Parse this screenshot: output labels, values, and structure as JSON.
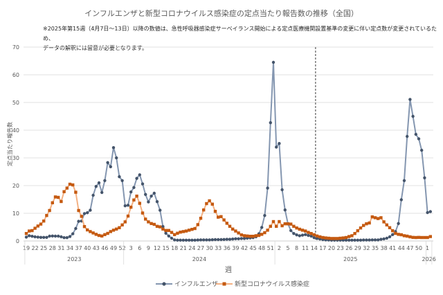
{
  "title": "インフルエンザと新型コロナウイルス感染症の定点当たり報告数の推移（全国）",
  "note_line1": "※2025年第15週（4月7日～13日）以降の数値は、急性呼吸器感染症サーベイランス開始による定点医療機関設置基準の変更に伴い定点数が変更されているため、",
  "note_line2": "データの解釈には留意が必要となります。",
  "chart_data": {
    "type": "line",
    "title": "インフルエンザと新型コロナウイルス感染症の定点当たり報告数の推移（全国）",
    "xlabel": "週",
    "ylabel": "定点当たり報告数",
    "ylim": [
      0,
      70
    ],
    "yticks": [
      0,
      10,
      20,
      30,
      40,
      50,
      60,
      70
    ],
    "grid": "horizontal",
    "legend_position": "bottom",
    "reference_line": {
      "style": "dashed",
      "between": [
        "2025-W14",
        "2025-W15"
      ]
    },
    "years": [
      {
        "year": "2023",
        "weeks": [
          19,
          20,
          21,
          22,
          23,
          24,
          25,
          26,
          27,
          28,
          29,
          30,
          31,
          32,
          33,
          34,
          35,
          36,
          37,
          38,
          39,
          40,
          41,
          42,
          43,
          44,
          45,
          46,
          47,
          48,
          49,
          50,
          51,
          52
        ]
      },
      {
        "year": "2024",
        "weeks": [
          1,
          2,
          3,
          4,
          5,
          6,
          7,
          8,
          9,
          10,
          11,
          12,
          13,
          14,
          15,
          16,
          17,
          18,
          19,
          20,
          21,
          22,
          23,
          24,
          25,
          26,
          27,
          28,
          29,
          30,
          31,
          32,
          33,
          34,
          35,
          36,
          37,
          38,
          39,
          40,
          41,
          42,
          43,
          44,
          45,
          46,
          47,
          48,
          49,
          50,
          51,
          52
        ]
      },
      {
        "year": "2025",
        "weeks": [
          1,
          2,
          3,
          4,
          5,
          6,
          7,
          8,
          9,
          10,
          11,
          12,
          13,
          14,
          15,
          16,
          17,
          18,
          19,
          20,
          21,
          22,
          23,
          24,
          25,
          26,
          27,
          28,
          29,
          30,
          31,
          32,
          33,
          34,
          35,
          36,
          37,
          38,
          39,
          40,
          41,
          42,
          43,
          44,
          45,
          46,
          47,
          48,
          49,
          50,
          51,
          52
        ]
      },
      {
        "year": "2026",
        "weeks": [
          1,
          2
        ]
      }
    ],
    "series": [
      {
        "name": "インフルエンザ",
        "color": "#8496b0",
        "marker_color": "#44546a",
        "marker": "circle",
        "values": [
          1.4,
          1.9,
          1.7,
          1.5,
          1.4,
          1.3,
          1.3,
          1.3,
          1.75,
          1.8,
          1.75,
          1.75,
          1.5,
          1.2,
          1.2,
          1.6,
          2.6,
          4.5,
          7.1,
          7.2,
          9.9,
          10.2,
          11.1,
          16.5,
          19.7,
          21.0,
          17.5,
          21.8,
          28.3,
          26.8,
          33.7,
          30.0,
          23.2,
          21.8,
          12.7,
          12.9,
          17.7,
          19.3,
          22.6,
          23.9,
          20.6,
          16.8,
          14.1,
          16.2,
          17.25,
          14.2,
          11.1,
          5.2,
          2.8,
          1.8,
          1.0,
          0.4,
          0.3,
          0.3,
          0.3,
          0.3,
          0.3,
          0.3,
          0.3,
          0.35,
          0.4,
          0.4,
          0.4,
          0.4,
          0.45,
          0.5,
          0.5,
          0.5,
          0.55,
          0.6,
          0.6,
          0.7,
          0.8,
          0.8,
          0.9,
          0.9,
          1.0,
          1.1,
          1.2,
          1.5,
          2.6,
          4.9,
          9.2,
          19.1,
          42.7,
          64.5,
          33.9,
          35.2,
          18.5,
          11.2,
          6.2,
          3.75,
          2.7,
          2.2,
          1.9,
          2.1,
          2.3,
          2.0,
          1.75,
          1.2,
          0.9,
          0.7,
          0.5,
          0.4,
          0.35,
          0.3,
          0.3,
          0.3,
          0.3,
          0.3,
          0.3,
          0.3,
          0.3,
          0.3,
          0.3,
          0.3,
          0.35,
          0.35,
          0.35,
          0.4,
          0.4,
          0.4,
          0.6,
          0.75,
          1.0,
          1.5,
          2.3,
          3.4,
          6.3,
          14.9,
          21.8,
          37.75,
          51.1,
          45.0,
          38.5,
          36.9,
          32.75,
          22.8,
          10.25,
          10.6
        ]
      },
      {
        "name": "新型コロナウイルス感染症",
        "color": "#f4b183",
        "marker_color": "#c55a11",
        "marker": "square",
        "values": [
          2.7,
          3.6,
          3.75,
          4.6,
          5.4,
          6.1,
          7.2,
          9.2,
          11.0,
          13.8,
          15.9,
          15.75,
          14.25,
          17.8,
          19.1,
          20.5,
          20.25,
          17.6,
          11.0,
          8.9,
          5.2,
          4.0,
          3.4,
          2.9,
          2.4,
          2.0,
          1.8,
          2.3,
          2.75,
          3.4,
          3.9,
          4.3,
          4.8,
          5.8,
          6.9,
          9.0,
          12.2,
          14.8,
          16.2,
          13.6,
          10.1,
          7.9,
          6.9,
          6.3,
          6.0,
          5.3,
          5.1,
          4.3,
          3.8,
          3.8,
          3.1,
          2.3,
          2.8,
          3.2,
          3.4,
          3.6,
          3.9,
          4.2,
          4.5,
          5.9,
          8.2,
          11.2,
          13.5,
          14.5,
          13.3,
          10.7,
          8.6,
          8.8,
          7.6,
          6.4,
          5.3,
          4.3,
          3.6,
          2.9,
          2.2,
          1.9,
          1.8,
          1.7,
          1.7,
          1.9,
          2.0,
          2.4,
          3.0,
          3.9,
          5.3,
          7.0,
          5.3,
          7.0,
          5.5,
          6.2,
          6.2,
          6.1,
          5.3,
          4.7,
          4.25,
          3.9,
          3.6,
          3.1,
          2.7,
          2.25,
          1.8,
          1.5,
          1.25,
          1.1,
          1.0,
          0.9,
          0.9,
          0.9,
          1.0,
          1.1,
          1.25,
          1.6,
          1.9,
          2.7,
          3.7,
          4.7,
          5.6,
          6.2,
          6.5,
          8.7,
          8.4,
          8.1,
          8.4,
          6.9,
          5.8,
          4.8,
          3.7,
          2.75,
          2.4,
          2.25,
          1.9,
          1.75,
          1.5,
          1.3,
          1.25,
          1.3,
          1.25,
          1.25,
          1.25,
          1.6
        ]
      }
    ]
  }
}
